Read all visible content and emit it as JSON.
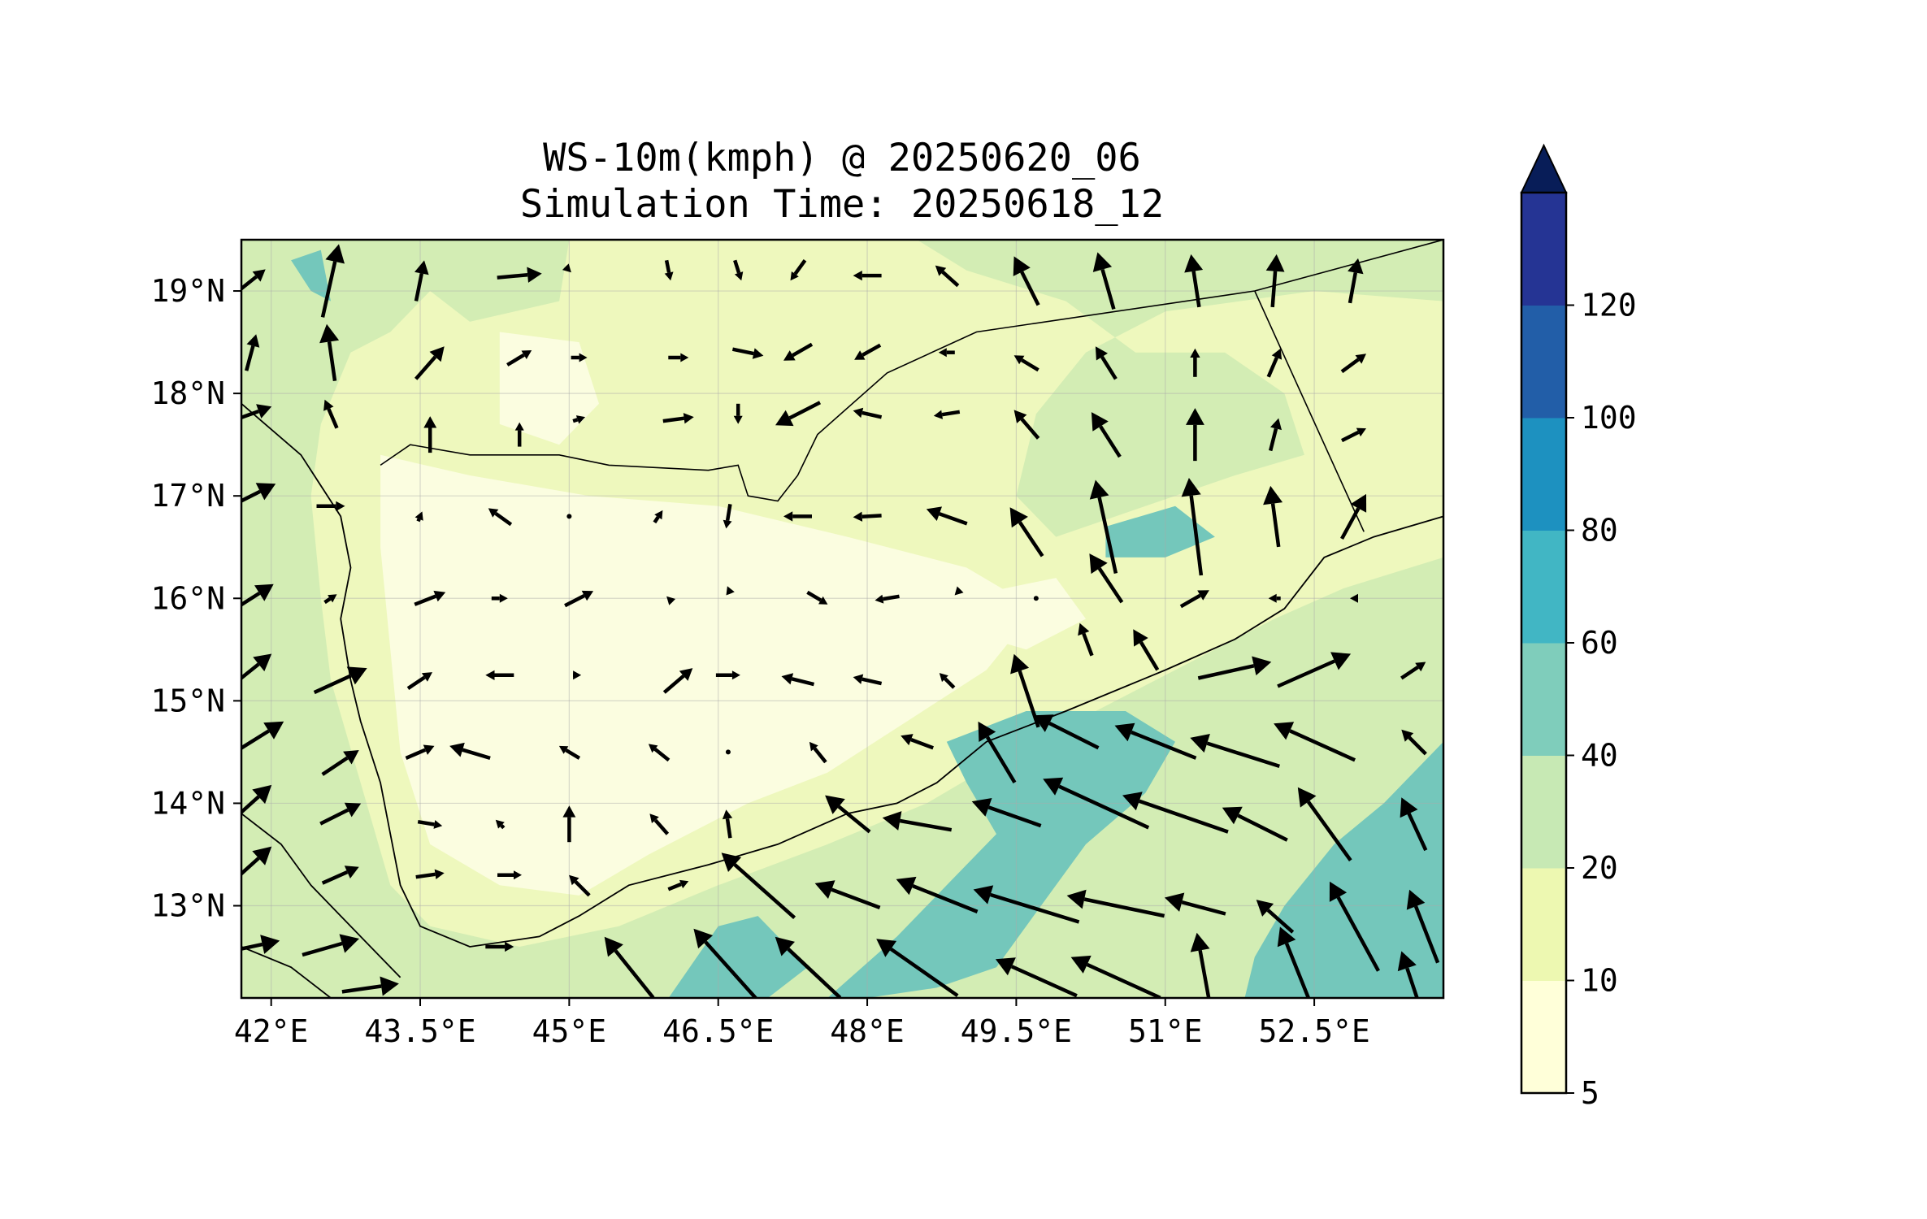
{
  "title": {
    "line1": "WS-10m(kmph) @ 20250620_06",
    "line2": "Simulation Time: 20250618_12"
  },
  "chart_data": {
    "type": "map",
    "variable": "10 m wind speed (kmph) with wind vectors",
    "lon_range": [
      41.7,
      53.8
    ],
    "lat_range": [
      12.1,
      19.5
    ],
    "x_ticks": [
      "42°E",
      "43.5°E",
      "45°E",
      "46.5°E",
      "48°E",
      "49.5°E",
      "51°E",
      "52.5°E"
    ],
    "y_ticks": [
      "19°N",
      "18°N",
      "17°N",
      "16°N",
      "15°N",
      "14°N",
      "13°N"
    ],
    "colorbar": {
      "levels": [
        5,
        10,
        20,
        40,
        60,
        80,
        100,
        120
      ],
      "labels": [
        "5",
        "10",
        "20",
        "40",
        "60",
        "80",
        "100",
        "120"
      ],
      "colors": [
        "#ffffd9",
        "#edf8b1",
        "#c7e9b4",
        "#7fcdbb",
        "#41b6c4",
        "#1d91c0",
        "#225ea8",
        "#253494"
      ],
      "extend_color": "#081d58",
      "extend": "max"
    },
    "fill_colors": {
      "lt10": "#fbfde0",
      "10-20": "#eef8bd",
      "20-40": "#d3edb4",
      "40-60": "#74c7bb"
    },
    "grid": true,
    "coastline": true,
    "borders": true
  }
}
